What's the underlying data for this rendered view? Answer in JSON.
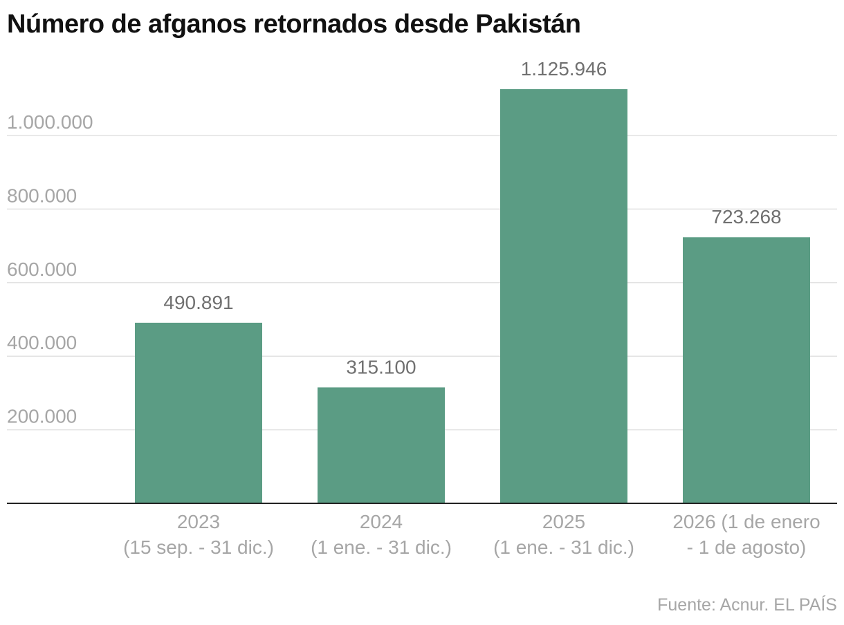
{
  "title": "Número de afganos retornados desde Pakistán",
  "source": "Fuente: Acnur. EL PAÍS",
  "colors": {
    "bar": "#5b9c84",
    "grid": "#e2e2e2",
    "axis": "#222222"
  },
  "chart_data": {
    "type": "bar",
    "title": "Número de afganos retornados desde Pakistán",
    "xlabel": "",
    "ylabel": "",
    "ylim": [
      0,
      1200000
    ],
    "yticks": [
      200000,
      400000,
      600000,
      800000,
      1000000
    ],
    "ytick_labels": [
      "200.000",
      "400.000",
      "600.000",
      "800.000",
      "1.000.000"
    ],
    "grid": true,
    "categories": [
      [
        "2023",
        "(15 sep. - 31 dic.)"
      ],
      [
        "2024",
        "(1 ene. - 31 dic.)"
      ],
      [
        "2025",
        "(1 ene. - 31 dic.)"
      ],
      [
        "2026 (1 de enero",
        "- 1 de agosto)"
      ]
    ],
    "values": [
      490891,
      315100,
      1125946,
      723268
    ],
    "value_labels": [
      "490.891",
      "315.100",
      "1.125.946",
      "723.268"
    ]
  }
}
